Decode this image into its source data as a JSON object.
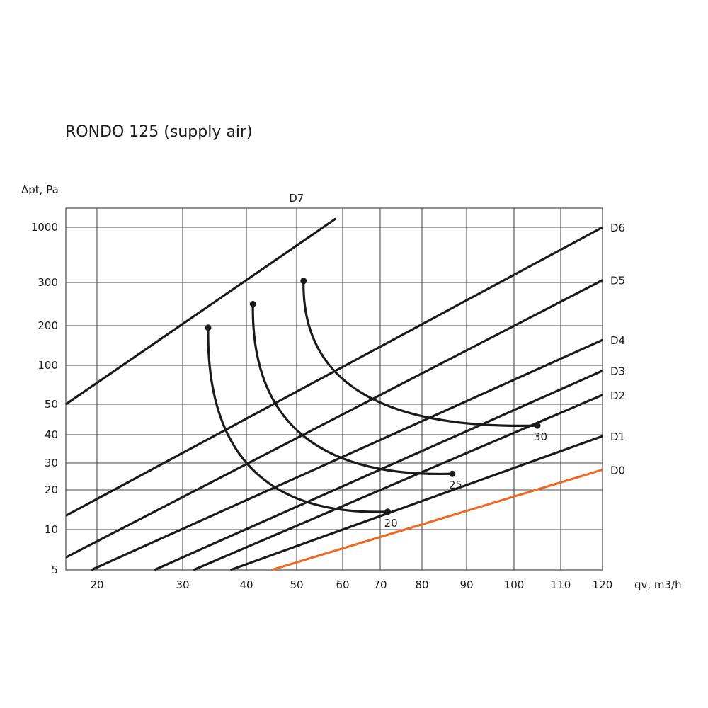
{
  "chart_data": {
    "type": "line",
    "title": "RONDO 125 (supply air)",
    "ylabel": "Δpt, Pa",
    "xlabel": "qv, m3/h",
    "xlim": [
      16.7,
      120
    ],
    "ylim_label_range": [
      "5",
      "1000"
    ],
    "x_ticks": [
      "20",
      "30",
      "40",
      "50",
      "60",
      "70",
      "80",
      "90",
      "100",
      "110",
      "120"
    ],
    "y_ticks": [
      "5",
      "10",
      "20",
      "30",
      "40",
      "50",
      "100",
      "200",
      "300",
      "1000"
    ],
    "grid": true,
    "series": [
      {
        "name": "D7",
        "color": "#1a1a1a",
        "points": [
          [
            16.7,
            50
          ],
          [
            58.5,
            1109
          ]
        ]
      },
      {
        "name": "D6",
        "color": "#1a1a1a",
        "points": [
          [
            16.7,
            13.5
          ],
          [
            120,
            1000
          ]
        ]
      },
      {
        "name": "D5",
        "color": "#1a1a1a",
        "points": [
          [
            16.7,
            6.55
          ],
          [
            120,
            330
          ]
        ]
      },
      {
        "name": "D4",
        "color": "#1a1a1a",
        "points": [
          [
            19.4,
            5
          ],
          [
            120,
            164
          ]
        ]
      },
      {
        "name": "D3",
        "color": "#1a1a1a",
        "points": [
          [
            26.7,
            5
          ],
          [
            120,
            93
          ]
        ]
      },
      {
        "name": "D2",
        "color": "#1a1a1a",
        "points": [
          [
            31.7,
            5
          ],
          [
            120,
            62
          ]
        ]
      },
      {
        "name": "D1",
        "color": "#1a1a1a",
        "points": [
          [
            37.5,
            5
          ],
          [
            120,
            39.5
          ]
        ]
      },
      {
        "name": "D0",
        "color": "#ee6a24",
        "points": [
          [
            45.0,
            5
          ],
          [
            120,
            27.5
          ]
        ]
      }
    ],
    "selection_curves": [
      {
        "label": "20",
        "start": [
          34.0,
          195
        ],
        "end": [
          71.8,
          14.5
        ]
      },
      {
        "label": "25",
        "start": [
          41.3,
          250
        ],
        "end": [
          86.8,
          26
        ]
      },
      {
        "label": "30",
        "start": [
          51.5,
          320
        ],
        "end": [
          105,
          43
        ]
      }
    ]
  }
}
